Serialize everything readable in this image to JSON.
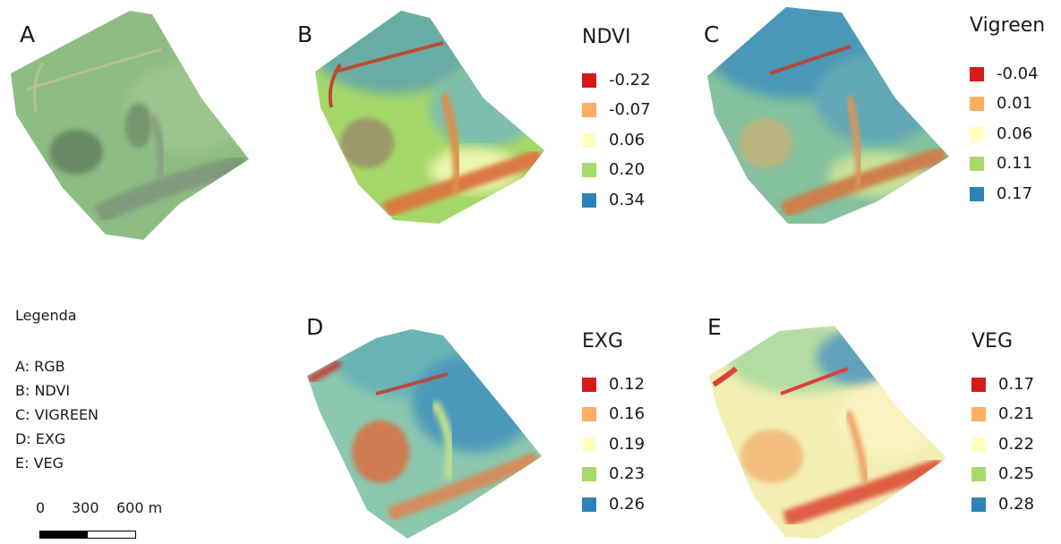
{
  "panels": [
    {
      "letter": "A",
      "legend": null
    },
    {
      "letter": "B",
      "legend": {
        "title": "NDVI",
        "entries": [
          {
            "value": "-0.22",
            "color": "#d7191c"
          },
          {
            "value": "-0.07",
            "color": "#fdae61"
          },
          {
            "value": "0.06",
            "color": "#ffffbf"
          },
          {
            "value": "0.20",
            "color": "#a6d96a"
          },
          {
            "value": "0.34",
            "color": "#2b83ba"
          }
        ]
      }
    },
    {
      "letter": "C",
      "legend": {
        "title": "Vigreen",
        "entries": [
          {
            "value": "-0.04",
            "color": "#d7191c"
          },
          {
            "value": "0.01",
            "color": "#fdae61"
          },
          {
            "value": "0.06",
            "color": "#ffffbf"
          },
          {
            "value": "0.11",
            "color": "#a6d96a"
          },
          {
            "value": "0.17",
            "color": "#2b83ba"
          }
        ]
      }
    },
    {
      "letter": "D",
      "legend": {
        "title": "EXG",
        "entries": [
          {
            "value": "0.12",
            "color": "#d7191c"
          },
          {
            "value": "0.16",
            "color": "#fdae61"
          },
          {
            "value": "0.19",
            "color": "#ffffbf"
          },
          {
            "value": "0.23",
            "color": "#a6d96a"
          },
          {
            "value": "0.26",
            "color": "#2b83ba"
          }
        ]
      }
    },
    {
      "letter": "E",
      "legend": {
        "title": "VEG",
        "entries": [
          {
            "value": "0.17",
            "color": "#d7191c"
          },
          {
            "value": "0.21",
            "color": "#fdae61"
          },
          {
            "value": "0.22",
            "color": "#ffffbf"
          },
          {
            "value": "0.25",
            "color": "#a6d96a"
          },
          {
            "value": "0.28",
            "color": "#2b83ba"
          }
        ]
      }
    }
  ],
  "key": {
    "title": "Legenda",
    "items": [
      "A: RGB",
      "B: NDVI",
      "C: VIGREEN",
      "D: EXG",
      "E: VEG"
    ]
  },
  "scalebar": {
    "labels": [
      "0",
      "300",
      "600 m"
    ]
  }
}
